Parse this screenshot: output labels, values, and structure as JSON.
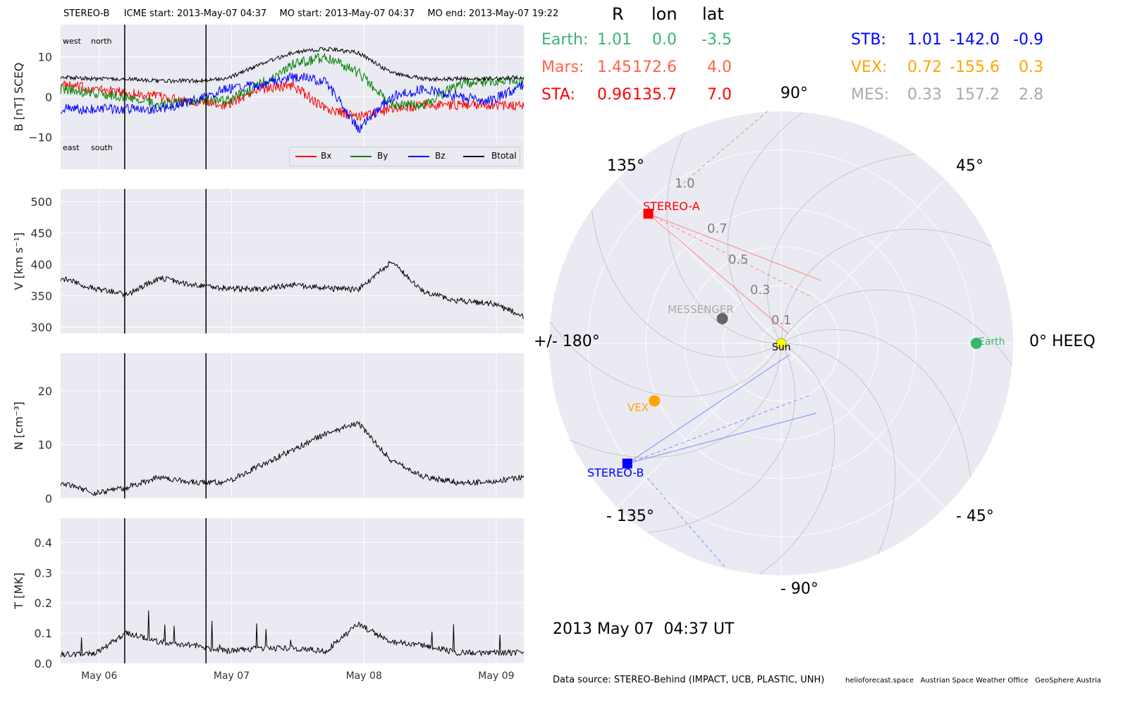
{
  "header": {
    "spacecraft": "STEREO-B",
    "icme_start": "ICME start: 2013-May-07 04:37",
    "mo_start": "MO start: 2013-May-07 04:37",
    "mo_end": "MO end: 2013-May-07 19:22"
  },
  "legend": {
    "bx": "Bx",
    "by": "By",
    "bz": "Bz",
    "btotal": "Btotal"
  },
  "b_annotations": {
    "west": "west",
    "north": "north",
    "east": "east",
    "south": "south"
  },
  "positions": {
    "columns": [
      "R",
      "lon",
      "lat"
    ],
    "left": [
      {
        "name": "Earth:",
        "R": "1.01",
        "lon": "0.0",
        "lat": "-3.5",
        "color": "#3cb371"
      },
      {
        "name": "Mars:",
        "R": "1.45",
        "lon": "172.6",
        "lat": "4.0",
        "color": "#ff6347"
      },
      {
        "name": "STA:",
        "R": "0.96",
        "lon": "135.7",
        "lat": "7.0",
        "color": "#ff0000"
      }
    ],
    "right": [
      {
        "name": "STB:",
        "R": "1.01",
        "lon": "-142.0",
        "lat": "-0.9",
        "color": "#0000ff"
      },
      {
        "name": "VEX:",
        "R": "0.72",
        "lon": "-155.6",
        "lat": "0.3",
        "color": "#ffa500"
      },
      {
        "name": "MES:",
        "R": "0.33",
        "lon": "157.2",
        "lat": "2.8",
        "color": "#a9a9a9"
      }
    ]
  },
  "polar": {
    "angle_labels": {
      "a90": "90°",
      "a45": "45°",
      "a0": "0° HEEQ",
      "am45": "- 45°",
      "am90": "- 90°",
      "am135": "- 135°",
      "a180": "+/- 180°",
      "a135": "135°"
    },
    "radial_labels": [
      "0.1",
      "0.3",
      "0.5",
      "0.7",
      "1.0"
    ],
    "bodies": [
      {
        "label": "Sun",
        "r": 0.0,
        "lon": 0.0,
        "color": "#ffff00",
        "marker": "circle"
      },
      {
        "label": "Earth",
        "r": 1.01,
        "lon": 0.0,
        "color": "#3cb371",
        "marker": "circle"
      },
      {
        "label": "STEREO-A",
        "r": 0.96,
        "lon": 135.7,
        "color": "#ff0000",
        "marker": "square"
      },
      {
        "label": "STEREO-B",
        "r": 1.01,
        "lon": -142.0,
        "color": "#0000ff",
        "marker": "square"
      },
      {
        "label": "VEX",
        "r": 0.72,
        "lon": -155.6,
        "color": "#ffa500",
        "marker": "circle"
      },
      {
        "label": "MESSENGER",
        "r": 0.33,
        "lon": 157.2,
        "color": "#666666",
        "marker": "circle"
      }
    ],
    "date_text": "2013 May 07  04:37 UT"
  },
  "footer": {
    "source": "Data source: STEREO-Behind (IMPACT, UCB, PLASTIC, UNH)",
    "credits": "helioforecast.space   Austrian Space Weather Office   GeoSphere Austria"
  },
  "chart_data": [
    {
      "type": "line",
      "ylabel": "B [nT] SCEQ",
      "ylim": [
        -18,
        18
      ],
      "yticks": [
        -10,
        0,
        10
      ],
      "x_range_days": [
        "2013-05-05T17:00",
        "2013-05-09T05:00"
      ],
      "xticks": [
        "May 06",
        "May 07",
        "May 08",
        "May 09"
      ],
      "event_lines": [
        "2013-05-07T04:37",
        "2013-05-07T19:22"
      ],
      "series": [
        {
          "name": "Bx",
          "color": "#ff0000",
          "t": [
            0,
            6,
            12,
            18,
            24,
            30,
            36,
            42,
            48,
            54,
            60,
            66,
            72,
            78,
            84
          ],
          "values": [
            3,
            2,
            1,
            0,
            -1,
            -2,
            2,
            3,
            -3,
            -5,
            -3,
            -2,
            -2,
            -2,
            -2
          ]
        },
        {
          "name": "By",
          "color": "#008000",
          "t": [
            0,
            6,
            12,
            18,
            24,
            30,
            36,
            42,
            48,
            54,
            60,
            66,
            72,
            78,
            84
          ],
          "values": [
            2,
            1,
            0,
            -2,
            -1,
            -1,
            3,
            8,
            10,
            6,
            -2,
            -2,
            3,
            4,
            4
          ]
        },
        {
          "name": "Bz",
          "color": "#0000ff",
          "t": [
            0,
            6,
            12,
            18,
            24,
            30,
            36,
            42,
            48,
            54,
            60,
            66,
            72,
            78,
            84
          ],
          "values": [
            -3,
            -3,
            -3,
            -3,
            -1,
            2,
            3,
            5,
            4,
            -8,
            0,
            2,
            0,
            -1,
            3
          ]
        },
        {
          "name": "Btotal",
          "color": "#000000",
          "t": [
            0,
            6,
            12,
            18,
            24,
            30,
            36,
            42,
            48,
            54,
            60,
            66,
            72,
            78,
            84
          ],
          "values": [
            5,
            4.5,
            4.5,
            4,
            4,
            4.5,
            8,
            11,
            12,
            11,
            6,
            4.5,
            4.5,
            4.5,
            5
          ]
        }
      ]
    },
    {
      "type": "line",
      "ylabel": "V [km s⁻¹]",
      "ylim": [
        290,
        520
      ],
      "yticks": [
        300,
        350,
        400,
        450,
        500
      ],
      "series": [
        {
          "name": "V",
          "color": "#000000",
          "t": [
            0,
            6,
            12,
            18,
            24,
            30,
            36,
            42,
            48,
            54,
            60,
            66,
            72,
            78,
            84
          ],
          "values": [
            378,
            362,
            352,
            378,
            368,
            362,
            360,
            368,
            362,
            360,
            405,
            355,
            342,
            338,
            318
          ]
        }
      ]
    },
    {
      "type": "line",
      "ylabel": "N [cm⁻³]",
      "ylim": [
        0,
        27
      ],
      "yticks": [
        0,
        10,
        20
      ],
      "series": [
        {
          "name": "N",
          "color": "#000000",
          "t": [
            0,
            6,
            12,
            18,
            24,
            30,
            36,
            42,
            48,
            54,
            60,
            66,
            72,
            78,
            84
          ],
          "values": [
            3,
            1,
            2,
            4,
            3,
            3,
            6,
            9,
            12,
            14,
            7,
            4,
            3,
            3,
            4
          ]
        }
      ]
    },
    {
      "type": "line",
      "ylabel": "T [MK]",
      "ylim": [
        0,
        0.48
      ],
      "yticks": [
        0.0,
        0.1,
        0.2,
        0.3,
        0.4
      ],
      "series": [
        {
          "name": "T",
          "color": "#000000",
          "t": [
            0,
            6,
            12,
            18,
            24,
            30,
            36,
            42,
            48,
            54,
            60,
            66,
            72,
            78,
            84
          ],
          "values": [
            0.03,
            0.03,
            0.1,
            0.07,
            0.06,
            0.04,
            0.05,
            0.05,
            0.04,
            0.13,
            0.07,
            0.06,
            0.035,
            0.035,
            0.035
          ]
        }
      ]
    }
  ]
}
